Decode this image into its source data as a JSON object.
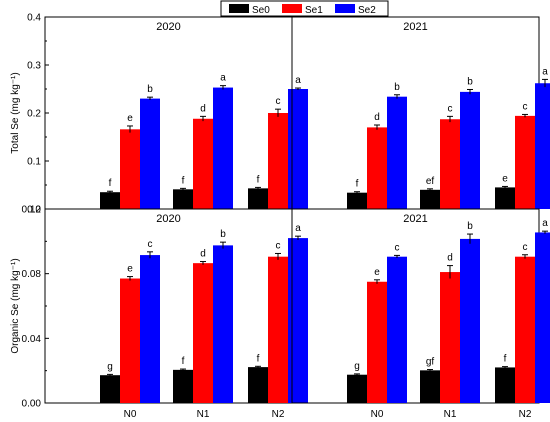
{
  "legend": [
    {
      "name": "Se0",
      "color": "#000000"
    },
    {
      "name": "Se1",
      "color": "#ff0000"
    },
    {
      "name": "Se2",
      "color": "#0000ff"
    }
  ],
  "chart_data": [
    {
      "type": "bar",
      "title": "2020",
      "categories": [
        "N0",
        "N1",
        "N2"
      ],
      "ylabel": "Total Se (mg kg⁻¹)",
      "ylim": [
        0,
        0.4
      ],
      "yticks": [
        0,
        0.1,
        0.2,
        0.3,
        0.4
      ],
      "ytick_labels": [
        "0.0",
        "0.1",
        "0.2",
        "0.3",
        "0.4"
      ],
      "series": [
        {
          "name": "Se0",
          "values": [
            0.035,
            0.041,
            0.043
          ],
          "errors": [
            0.002,
            0.002,
            0.002
          ],
          "letters": [
            "f",
            "f",
            "f"
          ]
        },
        {
          "name": "Se1",
          "values": [
            0.166,
            0.188,
            0.2
          ],
          "errors": [
            0.007,
            0.005,
            0.008
          ],
          "letters": [
            "e",
            "d",
            "c"
          ]
        },
        {
          "name": "Se2",
          "values": [
            0.23,
            0.253,
            0.25
          ],
          "errors": [
            0.003,
            0.004,
            0.002
          ],
          "letters": [
            "b",
            "a",
            "a"
          ]
        }
      ]
    },
    {
      "type": "bar",
      "title": "2021",
      "categories": [
        "N0",
        "N1",
        "N2"
      ],
      "ylabel": "",
      "ylim": [
        0,
        0.4
      ],
      "series": [
        {
          "name": "Se0",
          "values": [
            0.034,
            0.04,
            0.045
          ],
          "errors": [
            0.002,
            0.002,
            0.002
          ],
          "letters": [
            "f",
            "ef",
            "e"
          ]
        },
        {
          "name": "Se1",
          "values": [
            0.17,
            0.187,
            0.194
          ],
          "errors": [
            0.005,
            0.006,
            0.003
          ],
          "letters": [
            "d",
            "c",
            "c"
          ]
        },
        {
          "name": "Se2",
          "values": [
            0.234,
            0.244,
            0.262
          ],
          "errors": [
            0.004,
            0.005,
            0.008
          ],
          "letters": [
            "b",
            "b",
            "a"
          ]
        }
      ]
    },
    {
      "type": "bar",
      "title": "2020",
      "categories": [
        "N0",
        "N1",
        "N2"
      ],
      "ylabel": "Organic Se (mg kg⁻¹)",
      "ylim": [
        0,
        0.12
      ],
      "yticks": [
        0,
        0.04,
        0.08,
        0.12
      ],
      "ytick_labels": [
        "0.00",
        "0.04",
        "0.08",
        "0.12"
      ],
      "series": [
        {
          "name": "Se0",
          "values": [
            0.0172,
            0.0205,
            0.0222
          ],
          "errors": [
            0.0005,
            0.0005,
            0.0005
          ],
          "letters": [
            "g",
            "f",
            "f"
          ]
        },
        {
          "name": "Se1",
          "values": [
            0.077,
            0.0865,
            0.0905
          ],
          "errors": [
            0.0012,
            0.001,
            0.002
          ],
          "letters": [
            "e",
            "d",
            "c"
          ]
        },
        {
          "name": "Se2",
          "values": [
            0.0915,
            0.0975,
            0.102
          ],
          "errors": [
            0.002,
            0.002,
            0.0012
          ],
          "letters": [
            "c",
            "b",
            "a"
          ]
        }
      ]
    },
    {
      "type": "bar",
      "title": "2021",
      "categories": [
        "N0",
        "N1",
        "N2"
      ],
      "ylabel": "",
      "ylim": [
        0,
        0.12
      ],
      "series": [
        {
          "name": "Se0",
          "values": [
            0.0175,
            0.0202,
            0.022
          ],
          "errors": [
            0.0005,
            0.0005,
            0.0005
          ],
          "letters": [
            "g",
            "gf",
            "f"
          ]
        },
        {
          "name": "Se1",
          "values": [
            0.075,
            0.081,
            0.0905
          ],
          "errors": [
            0.0012,
            0.004,
            0.0012
          ],
          "letters": [
            "e",
            "d",
            "c"
          ]
        },
        {
          "name": "Se2",
          "values": [
            0.0905,
            0.1015,
            0.1055
          ],
          "errors": [
            0.0008,
            0.003,
            0.0008
          ],
          "letters": [
            "c",
            "b",
            "a"
          ]
        }
      ]
    }
  ]
}
